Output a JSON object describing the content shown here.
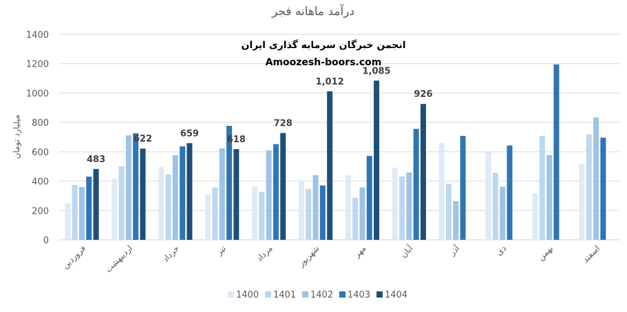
{
  "chart_data": {
    "type": "bar",
    "title": "درآمد ماهانه فجر",
    "xlabel": "",
    "ylabel": "میلیارد تومان",
    "ylim": [
      0,
      1400
    ],
    "yticks": [
      0,
      200,
      400,
      600,
      800,
      1000,
      1200,
      1400
    ],
    "grid": true,
    "legend_position": "bottom",
    "watermark": [
      "انجمن خبرگان سرمایه گذاری ایران",
      "Amoozesh-boors.com"
    ],
    "categories": [
      "فروردین",
      "اردیبهشت",
      "خرداد",
      "تیر",
      "مرداد",
      "شهریور",
      "مهر",
      "آبان",
      "آذر",
      "دی",
      "بهمن",
      "اسفند"
    ],
    "series": [
      {
        "name": "1400",
        "color": "#deebf7",
        "values": [
          248,
          417,
          496,
          309,
          366,
          395,
          441,
          492,
          660,
          597,
          317,
          517
        ]
      },
      {
        "name": "1401",
        "color": "#bdd7ee",
        "values": [
          375,
          501,
          445,
          356,
          328,
          347,
          287,
          432,
          381,
          456,
          707,
          718
        ]
      },
      {
        "name": "1402",
        "color": "#9dc3e6",
        "values": [
          360,
          712,
          576,
          623,
          610,
          441,
          357,
          459,
          263,
          362,
          578,
          834
        ]
      },
      {
        "name": "1403",
        "color": "#2e75b6",
        "values": [
          431,
          726,
          637,
          777,
          652,
          370,
          572,
          756,
          708,
          643,
          1195,
          696
        ]
      },
      {
        "name": "1404",
        "color": "#1f4e79",
        "values": [
          483,
          622,
          659,
          618,
          728,
          1012,
          1085,
          926,
          null,
          null,
          null,
          null
        ],
        "data_labels": [
          "483",
          "622",
          "659",
          "618",
          "728",
          "1,012",
          "1,085",
          "926"
        ]
      }
    ]
  }
}
